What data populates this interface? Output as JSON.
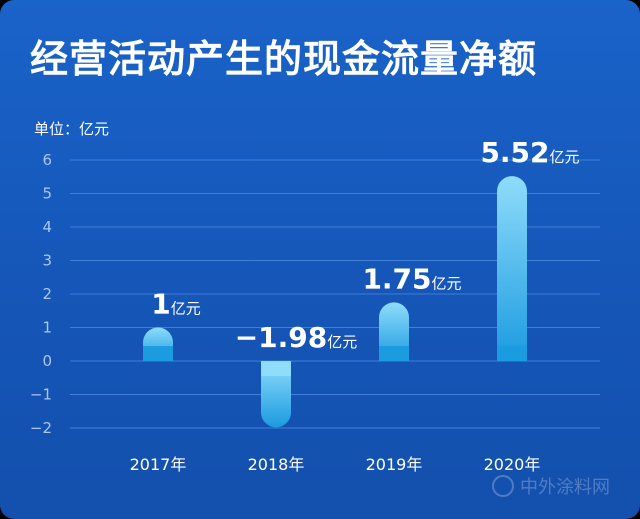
{
  "chart_data": {
    "type": "bar",
    "title": "经营活动产生的现金流量净额",
    "unit_label": "单位：亿元",
    "categories": [
      "2017年",
      "2018年",
      "2019年",
      "2020年"
    ],
    "values": [
      1,
      -1.98,
      1.75,
      5.52
    ],
    "value_labels": [
      "1",
      "−1.98",
      "1.75",
      "5.52"
    ],
    "value_unit": "亿元",
    "y_ticks": [
      "6",
      "5",
      "4",
      "3",
      "2",
      "1",
      "0",
      "−1",
      "−2"
    ],
    "ylim": [
      -2,
      6
    ],
    "grid": true,
    "bar_color_top": "#8fdcfb",
    "bar_color_bottom": "#1b9be0"
  },
  "watermark": "中外涂料网"
}
